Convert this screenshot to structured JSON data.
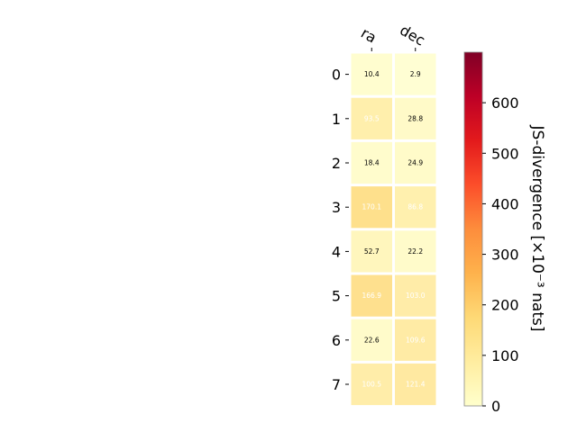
{
  "chart_data": {
    "type": "heatmap",
    "columns": [
      "ra",
      "dec"
    ],
    "rows": [
      "0",
      "1",
      "2",
      "3",
      "4",
      "5",
      "6",
      "7"
    ],
    "values": [
      [
        10.4,
        2.9
      ],
      [
        93.5,
        28.8
      ],
      [
        18.4,
        24.9
      ],
      [
        170.1,
        86.8
      ],
      [
        52.7,
        22.2
      ],
      [
        166.9,
        103.0
      ],
      [
        22.6,
        109.6
      ],
      [
        100.5,
        121.4
      ]
    ],
    "value_labels": [
      [
        "10.4",
        "2.9"
      ],
      [
        "93.5",
        "28.8"
      ],
      [
        "18.4",
        "24.9"
      ],
      [
        "170.1",
        "86.8"
      ],
      [
        "52.7",
        "22.2"
      ],
      [
        "166.9",
        "103.0"
      ],
      [
        "22.6",
        "109.6"
      ],
      [
        "100.5",
        "121.4"
      ]
    ],
    "colorbar": {
      "label": "JS-divergence [×10⁻³ nats]",
      "range": [
        0,
        700
      ],
      "ticks": [
        0,
        100,
        200,
        300,
        400,
        500,
        600
      ],
      "colormap": "YlOrRd",
      "light_text_threshold": 80
    }
  }
}
